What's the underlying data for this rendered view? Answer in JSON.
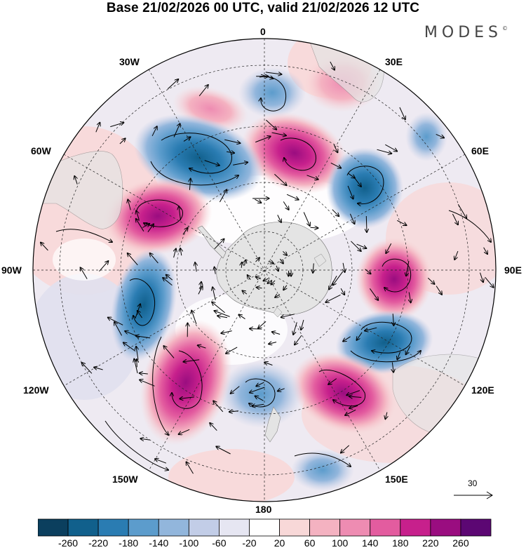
{
  "title": "Base 21/02/2026 00 UTC, valid 21/02/2026 12 UTC",
  "brand": {
    "name": "MODES",
    "mark": "©"
  },
  "longitude_labels": {
    "lon_0": "0",
    "lon_30e": "30E",
    "lon_60e": "60E",
    "lon_90e": "90E",
    "lon_120e": "120E",
    "lon_150e": "150E",
    "lon_180": "180",
    "lon_150w": "150W",
    "lon_120w": "120W",
    "lon_90w": "90W",
    "lon_60w": "60W",
    "lon_30w": "30W"
  },
  "reference_vector": {
    "label": "30"
  },
  "colorbar": {
    "ticks": [
      "-260",
      "-220",
      "-180",
      "-140",
      "-100",
      "-60",
      "-20",
      "20",
      "60",
      "100",
      "140",
      "180",
      "220",
      "260"
    ],
    "colors": [
      "#0b3f5e",
      "#11608c",
      "#2a7cb2",
      "#5c9ccc",
      "#92b6dc",
      "#c2cde7",
      "#e6e6f2",
      "#ffffff",
      "#f8d8d8",
      "#f4b2c1",
      "#ee8cb2",
      "#e35c9f",
      "#c7208c",
      "#9a0d80",
      "#5c0773"
    ]
  },
  "map": {
    "projection": "south-polar-stereographic",
    "anomaly_centers": [
      {
        "name": "low-south-atlantic-a",
        "sign": "negative",
        "magnitude": "-160"
      },
      {
        "name": "high-south-atlantic",
        "sign": "positive",
        "magnitude": "180"
      },
      {
        "name": "low-west-atlantic",
        "sign": "negative",
        "magnitude": "-220"
      },
      {
        "name": "high-south-america",
        "sign": "positive",
        "magnitude": "260"
      },
      {
        "name": "low-indian-ocean-west",
        "sign": "negative",
        "magnitude": "-160"
      },
      {
        "name": "high-indian-ocean",
        "sign": "positive",
        "magnitude": "220"
      },
      {
        "name": "low-south-australia",
        "sign": "negative",
        "magnitude": "-260"
      },
      {
        "name": "high-new-zealand",
        "sign": "positive",
        "magnitude": "200"
      },
      {
        "name": "low-ross-sea",
        "sign": "negative",
        "magnitude": "-140"
      },
      {
        "name": "high-south-pacific",
        "sign": "positive",
        "magnitude": "260"
      },
      {
        "name": "low-southeast-pacific",
        "sign": "negative",
        "magnitude": "-140"
      }
    ]
  }
}
